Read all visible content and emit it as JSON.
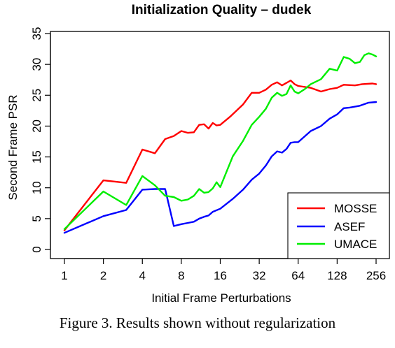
{
  "chart_data": {
    "type": "line",
    "title": "Initialization Quality – dudek",
    "xlabel": "Initial Frame Perturbations",
    "ylabel": "Second Frame PSR",
    "x_scale": "log2",
    "xlim": [
      1,
      256
    ],
    "ylim": [
      0,
      35
    ],
    "x_ticks": [
      1,
      2,
      4,
      8,
      16,
      32,
      64,
      128,
      256
    ],
    "x_tick_labels": [
      "1",
      "2",
      "4",
      "8",
      "16",
      "32",
      "64",
      "128",
      "256"
    ],
    "y_ticks": [
      0,
      5,
      10,
      15,
      20,
      25,
      30,
      35
    ],
    "y_tick_labels": [
      "0",
      "5",
      "10",
      "15",
      "20",
      "25",
      "30",
      "35"
    ],
    "grid": false,
    "legend_position": "bottom-right",
    "series": [
      {
        "name": "MOSSE",
        "color": "#ff0000",
        "points": [
          [
            1,
            3.1
          ],
          [
            2,
            11.2
          ],
          [
            3,
            10.8
          ],
          [
            4,
            16.2
          ],
          [
            5,
            15.6
          ],
          [
            6,
            17.9
          ],
          [
            7,
            18.4
          ],
          [
            8,
            19.2
          ],
          [
            9,
            18.9
          ],
          [
            10,
            19.0
          ],
          [
            11,
            20.2
          ],
          [
            12,
            20.3
          ],
          [
            13,
            19.6
          ],
          [
            14,
            20.5
          ],
          [
            15,
            20.1
          ],
          [
            16,
            20.2
          ],
          [
            19,
            21.5
          ],
          [
            24,
            23.5
          ],
          [
            28,
            25.4
          ],
          [
            32,
            25.4
          ],
          [
            36,
            25.9
          ],
          [
            40,
            26.7
          ],
          [
            44,
            27.1
          ],
          [
            48,
            26.6
          ],
          [
            52,
            27.0
          ],
          [
            56,
            27.4
          ],
          [
            60,
            26.8
          ],
          [
            64,
            26.5
          ],
          [
            80,
            26.2
          ],
          [
            96,
            25.6
          ],
          [
            112,
            26.0
          ],
          [
            128,
            26.2
          ],
          [
            144,
            26.7
          ],
          [
            176,
            26.6
          ],
          [
            200,
            26.8
          ],
          [
            240,
            26.9
          ],
          [
            256,
            26.8
          ]
        ]
      },
      {
        "name": "ASEF",
        "color": "#0000ff",
        "points": [
          [
            1,
            2.7
          ],
          [
            2,
            5.4
          ],
          [
            3,
            6.4
          ],
          [
            4,
            9.7
          ],
          [
            5,
            9.8
          ],
          [
            6,
            9.8
          ],
          [
            7,
            3.8
          ],
          [
            8,
            4.1
          ],
          [
            9,
            4.3
          ],
          [
            10,
            4.5
          ],
          [
            11,
            5.0
          ],
          [
            12,
            5.3
          ],
          [
            13,
            5.5
          ],
          [
            14,
            6.1
          ],
          [
            16,
            6.6
          ],
          [
            20,
            8.2
          ],
          [
            24,
            9.7
          ],
          [
            28,
            11.3
          ],
          [
            32,
            12.3
          ],
          [
            36,
            13.6
          ],
          [
            40,
            15.1
          ],
          [
            44,
            15.9
          ],
          [
            48,
            15.7
          ],
          [
            52,
            16.3
          ],
          [
            56,
            17.3
          ],
          [
            60,
            17.4
          ],
          [
            64,
            17.4
          ],
          [
            80,
            19.2
          ],
          [
            96,
            20.0
          ],
          [
            112,
            21.2
          ],
          [
            128,
            21.9
          ],
          [
            144,
            22.9
          ],
          [
            160,
            23.0
          ],
          [
            192,
            23.3
          ],
          [
            224,
            23.8
          ],
          [
            256,
            23.9
          ]
        ]
      },
      {
        "name": "UMACE",
        "color": "#00ee00",
        "points": [
          [
            1,
            3.3
          ],
          [
            2,
            9.4
          ],
          [
            3,
            7.2
          ],
          [
            4,
            11.9
          ],
          [
            5,
            10.4
          ],
          [
            6,
            8.7
          ],
          [
            7,
            8.5
          ],
          [
            8,
            7.9
          ],
          [
            9,
            8.1
          ],
          [
            10,
            8.7
          ],
          [
            11,
            9.8
          ],
          [
            12,
            9.2
          ],
          [
            13,
            9.3
          ],
          [
            14,
            9.9
          ],
          [
            15,
            10.9
          ],
          [
            16,
            10.1
          ],
          [
            20,
            15.1
          ],
          [
            24,
            17.6
          ],
          [
            28,
            20.2
          ],
          [
            32,
            21.5
          ],
          [
            36,
            22.8
          ],
          [
            40,
            24.6
          ],
          [
            44,
            25.4
          ],
          [
            48,
            24.9
          ],
          [
            52,
            25.2
          ],
          [
            56,
            26.6
          ],
          [
            60,
            25.6
          ],
          [
            64,
            25.3
          ],
          [
            72,
            26.0
          ],
          [
            80,
            26.8
          ],
          [
            96,
            27.6
          ],
          [
            112,
            29.3
          ],
          [
            128,
            29.0
          ],
          [
            144,
            31.2
          ],
          [
            160,
            30.9
          ],
          [
            176,
            30.2
          ],
          [
            192,
            30.4
          ],
          [
            208,
            31.5
          ],
          [
            224,
            31.8
          ],
          [
            240,
            31.6
          ],
          [
            256,
            31.3
          ]
        ]
      }
    ]
  },
  "caption": "Figure 3. Results shown without regularization"
}
